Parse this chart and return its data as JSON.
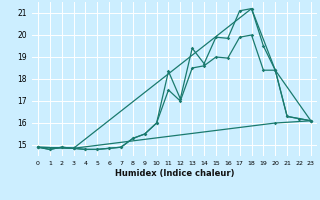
{
  "xlabel": "Humidex (Indice chaleur)",
  "bg_color": "#cceeff",
  "line_color": "#1a7a6e",
  "grid_color": "#ffffff",
  "xlim": [
    -0.5,
    23.5
  ],
  "ylim": [
    14.5,
    21.5
  ],
  "yticks": [
    15,
    16,
    17,
    18,
    19,
    20,
    21
  ],
  "xticks": [
    0,
    1,
    2,
    3,
    4,
    5,
    6,
    7,
    8,
    9,
    10,
    11,
    12,
    13,
    14,
    15,
    16,
    17,
    18,
    19,
    20,
    21,
    22,
    23
  ],
  "series1_x": [
    0,
    1,
    2,
    3,
    4,
    5,
    6,
    7,
    8,
    9,
    10,
    11,
    12,
    13,
    14,
    15,
    16,
    17,
    18,
    19,
    20,
    21,
    22,
    23
  ],
  "series1_y": [
    14.9,
    14.8,
    14.9,
    14.85,
    14.8,
    14.8,
    14.85,
    14.9,
    15.3,
    15.5,
    16.0,
    18.35,
    17.1,
    19.4,
    18.7,
    19.9,
    19.85,
    21.1,
    21.2,
    19.5,
    18.4,
    16.3,
    16.2,
    16.1
  ],
  "series2_x": [
    0,
    1,
    2,
    3,
    4,
    5,
    6,
    7,
    8,
    9,
    10,
    11,
    12,
    13,
    14,
    15,
    16,
    17,
    18,
    19,
    20,
    21,
    22,
    23
  ],
  "series2_y": [
    14.9,
    14.8,
    14.9,
    14.85,
    14.8,
    14.8,
    14.85,
    14.9,
    15.3,
    15.5,
    16.0,
    17.5,
    17.0,
    18.5,
    18.6,
    19.0,
    18.95,
    19.9,
    20.0,
    18.4,
    18.4,
    16.3,
    16.2,
    16.1
  ],
  "series3_x": [
    0,
    3,
    18,
    20,
    23
  ],
  "series3_y": [
    14.9,
    14.85,
    21.2,
    18.4,
    16.1
  ],
  "series4_x": [
    0,
    3,
    20,
    23
  ],
  "series4_y": [
    14.9,
    14.85,
    16.0,
    16.1
  ]
}
